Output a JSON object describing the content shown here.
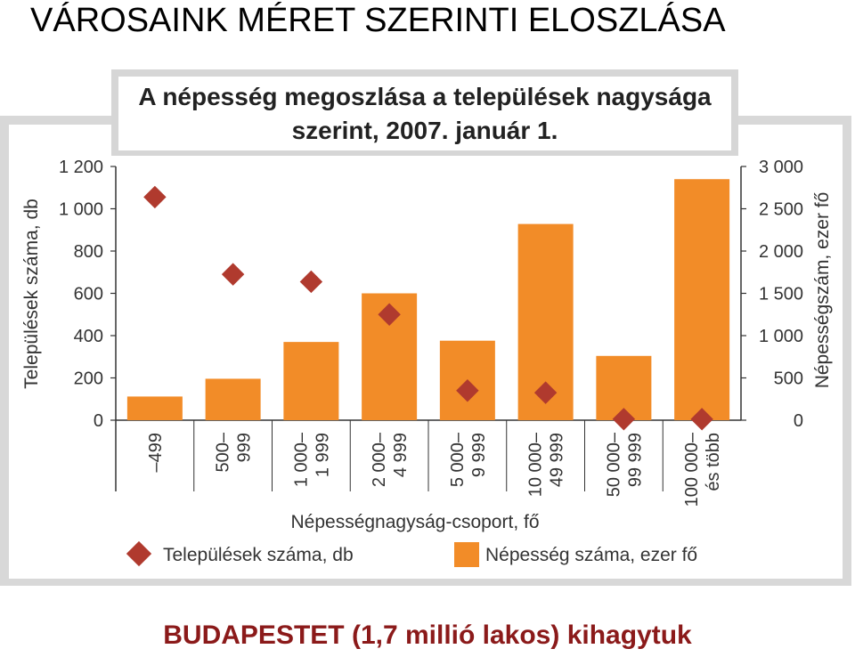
{
  "slide": {
    "title": "VÁROSAINK MÉRET SZERINTI ELOSZLÁSA",
    "footer": "BUDAPESTET (1,7 millió lakos) kihagytuk"
  },
  "chart_data": {
    "type": "bar",
    "title_line1": "A népesség megoszlása a települések nagysága",
    "title_line2": "szerint, 2007. január 1.",
    "xlabel": "Népességnagyság-csoport, fő",
    "ylabel_left": "Települések száma, db",
    "ylabel_right": "Népességszám, ezer fő",
    "categories": [
      [
        "–499"
      ],
      [
        "500–",
        "999"
      ],
      [
        "1 000–",
        "1 999"
      ],
      [
        "2 000–",
        "4 999"
      ],
      [
        "5 000–",
        "9 999"
      ],
      [
        "10 000–",
        "49 999"
      ],
      [
        "50 000–",
        "99 999"
      ],
      [
        "100 000–",
        "és több"
      ]
    ],
    "left_ticks": [
      "0",
      "200",
      "400",
      "600",
      "800",
      "1 000",
      "1 200"
    ],
    "right_ticks": [
      "0",
      "500",
      "1 000",
      "1 500",
      "2 000",
      "2 500",
      "3 000"
    ],
    "ylim_left": [
      0,
      1200
    ],
    "ylim_right": [
      0,
      3000
    ],
    "series": [
      {
        "name": "Népesség száma, ezer fő",
        "kind": "bar",
        "axis": "right",
        "color": "#f28c28",
        "values": [
          280,
          490,
          925,
          1500,
          940,
          2320,
          760,
          2850
        ]
      },
      {
        "name": "Települések száma, db",
        "kind": "marker",
        "axis": "left",
        "color": "#b03a2e",
        "values": [
          1055,
          690,
          655,
          500,
          140,
          130,
          5,
          5
        ]
      }
    ],
    "legend_position": "bottom",
    "grid": false
  }
}
